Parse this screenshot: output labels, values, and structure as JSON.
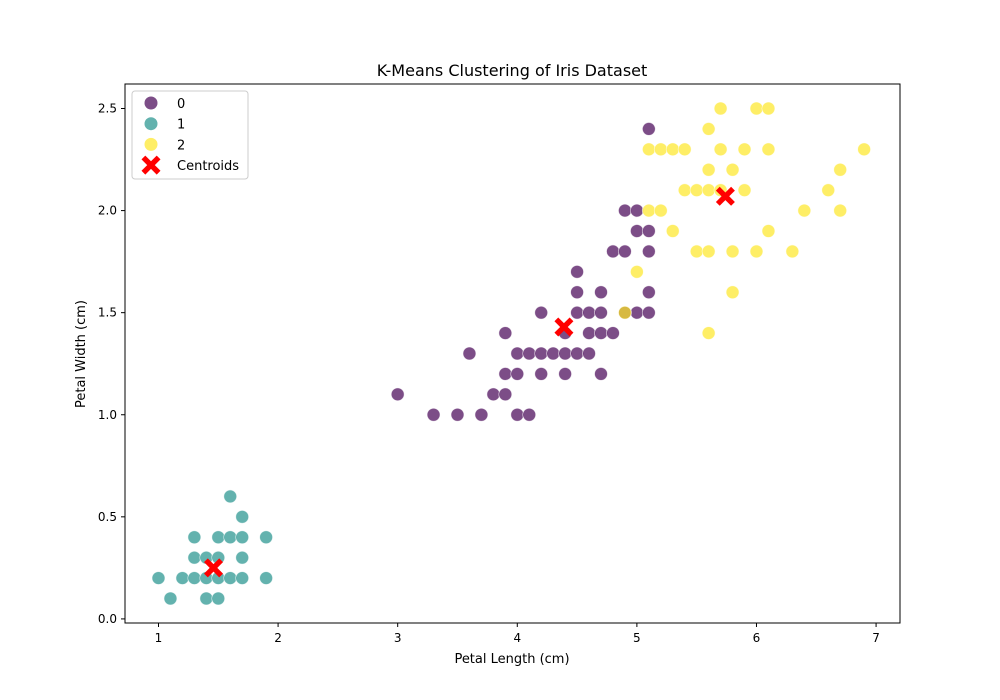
{
  "chart_data": {
    "type": "scatter",
    "title": "K-Means Clustering of Iris Dataset",
    "xlabel": "Petal Length (cm)",
    "ylabel": "Petal Width (cm)",
    "xlim": [
      0.72,
      7.2
    ],
    "ylim": [
      -0.02,
      2.62
    ],
    "xticks": [
      1,
      2,
      3,
      4,
      5,
      6,
      7
    ],
    "xtick_labels": [
      "1",
      "2",
      "3",
      "4",
      "5",
      "6",
      "7"
    ],
    "yticks": [
      0.0,
      0.5,
      1.0,
      1.5,
      2.0,
      2.5
    ],
    "ytick_labels": [
      "0.0",
      "0.5",
      "1.0",
      "1.5",
      "2.0",
      "2.5"
    ],
    "grid": false,
    "legend_position": "top-left",
    "series": [
      {
        "name": "0",
        "color": "#440154",
        "points": [
          [
            3.0,
            1.1
          ],
          [
            3.3,
            1.0
          ],
          [
            3.5,
            1.0
          ],
          [
            3.6,
            1.3
          ],
          [
            3.7,
            1.0
          ],
          [
            3.8,
            1.1
          ],
          [
            3.9,
            1.1
          ],
          [
            3.9,
            1.2
          ],
          [
            3.9,
            1.4
          ],
          [
            4.0,
            1.0
          ],
          [
            4.0,
            1.2
          ],
          [
            4.0,
            1.3
          ],
          [
            4.1,
            1.0
          ],
          [
            4.1,
            1.3
          ],
          [
            4.2,
            1.2
          ],
          [
            4.2,
            1.3
          ],
          [
            4.2,
            1.5
          ],
          [
            4.3,
            1.3
          ],
          [
            4.4,
            1.2
          ],
          [
            4.4,
            1.3
          ],
          [
            4.4,
            1.4
          ],
          [
            4.5,
            1.3
          ],
          [
            4.5,
            1.5
          ],
          [
            4.5,
            1.6
          ],
          [
            4.5,
            1.7
          ],
          [
            4.6,
            1.3
          ],
          [
            4.6,
            1.4
          ],
          [
            4.6,
            1.5
          ],
          [
            4.7,
            1.2
          ],
          [
            4.7,
            1.4
          ],
          [
            4.7,
            1.5
          ],
          [
            4.7,
            1.6
          ],
          [
            4.8,
            1.4
          ],
          [
            4.8,
            1.8
          ],
          [
            4.9,
            1.5
          ],
          [
            4.9,
            1.8
          ],
          [
            4.9,
            2.0
          ],
          [
            5.0,
            1.5
          ],
          [
            5.0,
            1.9
          ],
          [
            5.0,
            2.0
          ],
          [
            5.1,
            1.5
          ],
          [
            5.1,
            1.6
          ],
          [
            5.1,
            1.8
          ],
          [
            5.1,
            1.9
          ],
          [
            5.1,
            2.4
          ]
        ]
      },
      {
        "name": "1",
        "color": "#21918c",
        "points": [
          [
            1.0,
            0.2
          ],
          [
            1.1,
            0.1
          ],
          [
            1.2,
            0.2
          ],
          [
            1.3,
            0.2
          ],
          [
            1.3,
            0.3
          ],
          [
            1.3,
            0.4
          ],
          [
            1.4,
            0.1
          ],
          [
            1.4,
            0.2
          ],
          [
            1.4,
            0.3
          ],
          [
            1.5,
            0.1
          ],
          [
            1.5,
            0.2
          ],
          [
            1.5,
            0.3
          ],
          [
            1.5,
            0.4
          ],
          [
            1.6,
            0.2
          ],
          [
            1.6,
            0.4
          ],
          [
            1.6,
            0.6
          ],
          [
            1.7,
            0.2
          ],
          [
            1.7,
            0.3
          ],
          [
            1.7,
            0.4
          ],
          [
            1.7,
            0.5
          ],
          [
            1.9,
            0.2
          ],
          [
            1.9,
            0.4
          ]
        ]
      },
      {
        "name": "2",
        "color": "#fde725",
        "points": [
          [
            4.9,
            1.5
          ],
          [
            5.0,
            1.7
          ],
          [
            5.1,
            2.0
          ],
          [
            5.1,
            2.3
          ],
          [
            5.2,
            2.0
          ],
          [
            5.2,
            2.3
          ],
          [
            5.3,
            1.9
          ],
          [
            5.3,
            2.3
          ],
          [
            5.4,
            2.1
          ],
          [
            5.4,
            2.3
          ],
          [
            5.5,
            1.8
          ],
          [
            5.5,
            2.1
          ],
          [
            5.6,
            1.4
          ],
          [
            5.6,
            1.8
          ],
          [
            5.6,
            2.1
          ],
          [
            5.6,
            2.2
          ],
          [
            5.6,
            2.4
          ],
          [
            5.7,
            2.1
          ],
          [
            5.7,
            2.3
          ],
          [
            5.7,
            2.5
          ],
          [
            5.8,
            1.6
          ],
          [
            5.8,
            1.8
          ],
          [
            5.8,
            2.2
          ],
          [
            5.9,
            2.1
          ],
          [
            5.9,
            2.3
          ],
          [
            6.0,
            1.8
          ],
          [
            6.0,
            2.5
          ],
          [
            6.1,
            1.9
          ],
          [
            6.1,
            2.3
          ],
          [
            6.1,
            2.5
          ],
          [
            6.3,
            1.8
          ],
          [
            6.4,
            2.0
          ],
          [
            6.6,
            2.1
          ],
          [
            6.7,
            2.0
          ],
          [
            6.7,
            2.2
          ],
          [
            6.9,
            2.3
          ]
        ]
      }
    ],
    "centroids": {
      "name": "Centroids",
      "color": "#ff0000",
      "points": [
        [
          1.46,
          0.25
        ],
        [
          4.39,
          1.43
        ],
        [
          5.74,
          2.07
        ]
      ]
    }
  }
}
